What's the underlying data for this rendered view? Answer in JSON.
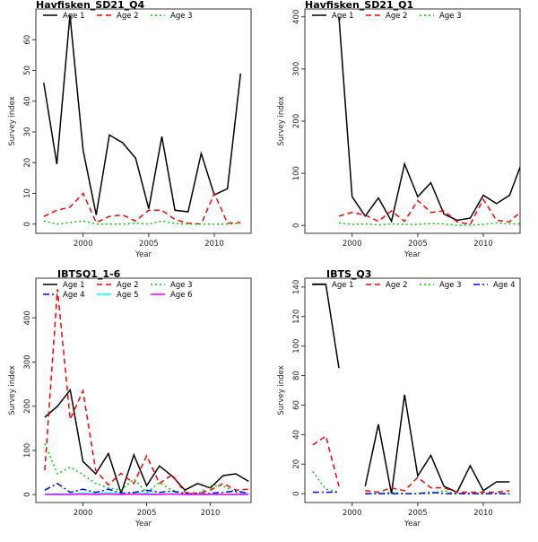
{
  "chart_data": [
    {
      "type": "line",
      "title": "Havfisken_SD21_Q4",
      "xlabel": "Year",
      "ylabel": "Survey index",
      "xlim": [
        1996.4,
        2012.8
      ],
      "ylim": [
        -3,
        70
      ],
      "xticks": [
        2000,
        2005,
        2010
      ],
      "yticks": [
        0,
        10,
        20,
        30,
        40,
        50,
        60
      ],
      "legend": "top",
      "series": [
        {
          "name": "Age 1",
          "color": "#000000",
          "dash": "solid",
          "x": [
            1997,
            1998,
            1999,
            2000,
            2001,
            2002,
            2003,
            2004,
            2005,
            2006,
            2007,
            2008,
            2009,
            2010,
            2011,
            2012
          ],
          "y": [
            46,
            19.5,
            68,
            24,
            3,
            29,
            26.5,
            21.5,
            5,
            28.5,
            4.5,
            4,
            23,
            9.5,
            11.5,
            49
          ]
        },
        {
          "name": "Age 2",
          "color": "#ff0000",
          "dash": "dashed",
          "x": [
            1997,
            1998,
            1999,
            2000,
            2001,
            2002,
            2003,
            2004,
            2005,
            2006,
            2007,
            2008,
            2009,
            2010,
            2011,
            2012
          ],
          "y": [
            2.5,
            4.5,
            5.5,
            10,
            0.5,
            2.5,
            3,
            1,
            4.5,
            4.5,
            1.5,
            0.3,
            0,
            10,
            0.3,
            0.5
          ]
        },
        {
          "name": "Age 3",
          "color": "#00cc00",
          "dash": "dotted",
          "x": [
            1997,
            1998,
            1999,
            2000,
            2001,
            2002,
            2003,
            2004,
            2005,
            2006,
            2007,
            2008,
            2009,
            2010,
            2011,
            2012
          ],
          "y": [
            1,
            0,
            0.5,
            1,
            0,
            0,
            0,
            0.3,
            0,
            1,
            0.2,
            0,
            0,
            0,
            0,
            0.3
          ]
        }
      ]
    },
    {
      "type": "line",
      "title": "Havfisken_SD21_Q1",
      "xlabel": "Year",
      "ylabel": "Survey index",
      "xlim": [
        1996.4,
        2012.8
      ],
      "ylim": [
        -15,
        415
      ],
      "xticks": [
        2000,
        2005,
        2010
      ],
      "yticks": [
        0,
        100,
        200,
        300,
        400
      ],
      "legend": "top",
      "series": [
        {
          "name": "Age 1",
          "color": "#000000",
          "dash": "solid",
          "x": [
            1999,
            2000,
            2001,
            2002,
            2003,
            2004,
            2005,
            2006,
            2007,
            2008,
            2009,
            2010,
            2011,
            2012,
            2013
          ],
          "y": [
            400,
            55,
            18,
            53,
            8,
            118,
            55,
            82,
            22,
            10,
            14,
            58,
            42,
            58,
            125
          ]
        },
        {
          "name": "Age 2",
          "color": "#ff0000",
          "dash": "dashed",
          "x": [
            1999,
            2000,
            2001,
            2002,
            2003,
            2004,
            2005,
            2006,
            2007,
            2008,
            2009,
            2010,
            2011,
            2012,
            2013
          ],
          "y": [
            18,
            25,
            20,
            8,
            28,
            8,
            48,
            25,
            28,
            7,
            2,
            50,
            10,
            7,
            30
          ]
        },
        {
          "name": "Age 3",
          "color": "#00cc00",
          "dash": "dotted",
          "x": [
            1999,
            2000,
            2001,
            2002,
            2003,
            2004,
            2005,
            2006,
            2007,
            2008,
            2009,
            2010,
            2011,
            2012,
            2013
          ],
          "y": [
            5,
            2,
            3,
            1,
            3,
            2,
            2,
            4,
            3,
            0,
            1,
            2,
            5,
            3,
            3
          ]
        }
      ]
    },
    {
      "type": "line",
      "title": "IBTSQ1_1-6",
      "xlabel": "Year",
      "ylabel": "Survey index",
      "xlim": [
        1996.3,
        2013.2
      ],
      "ylim": [
        -18,
        490
      ],
      "xticks": [
        2000,
        2005,
        2010
      ],
      "yticks": [
        0,
        100,
        200,
        300,
        400
      ],
      "legend": "top",
      "series": [
        {
          "name": "Age 1",
          "color": "#000000",
          "dash": "solid",
          "x": [
            1997,
            1998,
            1999,
            2000,
            2001,
            2002,
            2003,
            2004,
            2005,
            2006,
            2007,
            2008,
            2009,
            2010,
            2011,
            2012,
            2013
          ],
          "y": [
            175,
            200,
            237,
            75,
            47,
            93,
            3,
            90,
            20,
            65,
            42,
            10,
            25,
            15,
            43,
            47,
            30
          ]
        },
        {
          "name": "Age 2",
          "color": "#ff0000",
          "dash": "dashed",
          "x": [
            1997,
            1998,
            1999,
            2000,
            2001,
            2002,
            2003,
            2004,
            2005,
            2006,
            2007,
            2008,
            2009,
            2010,
            2011,
            2012,
            2013
          ],
          "y": [
            55,
            465,
            170,
            235,
            55,
            22,
            48,
            25,
            88,
            25,
            45,
            5,
            3,
            10,
            25,
            10,
            12
          ]
        },
        {
          "name": "Age 3",
          "color": "#00cc00",
          "dash": "dotted",
          "x": [
            1997,
            1998,
            1999,
            2000,
            2001,
            2002,
            2003,
            2004,
            2005,
            2006,
            2007,
            2008,
            2009,
            2010,
            2011,
            2012,
            2013
          ],
          "y": [
            115,
            47,
            62,
            45,
            25,
            15,
            10,
            35,
            5,
            27,
            10,
            3,
            2,
            20,
            20,
            5,
            3
          ]
        },
        {
          "name": "Age 4",
          "color": "#0000ff",
          "dash": "dashdot",
          "x": [
            1997,
            1998,
            1999,
            2000,
            2001,
            2002,
            2003,
            2004,
            2005,
            2006,
            2007,
            2008,
            2009,
            2010,
            2011,
            2012,
            2013
          ],
          "y": [
            10,
            25,
            5,
            12,
            5,
            12,
            3,
            5,
            10,
            5,
            8,
            2,
            1,
            3,
            5,
            8,
            3
          ]
        },
        {
          "name": "Age 5",
          "color": "#00ffff",
          "dash": "solid",
          "x": [
            1997,
            1998,
            1999,
            2000,
            2001,
            2002,
            2003,
            2004,
            2005,
            2006,
            2007,
            2008,
            2009,
            2010,
            2011,
            2012,
            2013
          ],
          "y": [
            1,
            2,
            1,
            3,
            2,
            4,
            1,
            2,
            3,
            1,
            2,
            0,
            0,
            1,
            0,
            1,
            1
          ]
        },
        {
          "name": "Age 6",
          "color": "#ff00ff",
          "dash": "solid",
          "x": [
            1997,
            1998,
            1999,
            2000,
            2001,
            2002,
            2003,
            2004,
            2005,
            2006,
            2007,
            2008,
            2009,
            2010,
            2011,
            2012,
            2013
          ],
          "y": [
            0,
            0,
            0,
            1,
            0,
            1,
            0,
            1,
            0,
            0,
            1,
            0,
            0,
            0,
            0,
            0,
            0
          ]
        }
      ]
    },
    {
      "type": "line",
      "title": "IBTS_Q3",
      "xlabel": "Year",
      "ylabel": "Survey index",
      "xlim": [
        1996.4,
        2012.8
      ],
      "ylim": [
        -6,
        146
      ],
      "xticks": [
        2000,
        2005,
        2010
      ],
      "yticks": [
        0,
        20,
        40,
        60,
        80,
        100,
        120,
        140
      ],
      "legend": "top",
      "series": [
        {
          "name": "Age 1",
          "color": "#000000",
          "dash": "solid",
          "segments": [
            {
              "x": [
                1997,
                1998,
                1999
              ],
              "y": [
                142,
                142,
                85
              ]
            },
            {
              "x": [
                2001,
                2002,
                2003,
                2004,
                2005,
                2006,
                2007,
                2008,
                2009,
                2010,
                2011,
                2012
              ],
              "y": [
                5,
                47,
                0,
                67,
                12,
                26,
                5,
                1,
                19,
                2,
                8,
                8
              ]
            }
          ]
        },
        {
          "name": "Age 2",
          "color": "#ff0000",
          "dash": "dashed",
          "segments": [
            {
              "x": [
                1997,
                1998,
                1999
              ],
              "y": [
                33,
                39,
                5
              ]
            },
            {
              "x": [
                2001,
                2002,
                2003,
                2004,
                2005,
                2006,
                2007,
                2008,
                2009,
                2010,
                2011,
                2012
              ],
              "y": [
                2,
                1,
                4,
                2,
                11,
                4,
                4,
                1,
                1,
                1,
                1,
                2
              ]
            }
          ]
        },
        {
          "name": "Age 3",
          "color": "#00cc00",
          "dash": "dotted",
          "segments": [
            {
              "x": [
                1997,
                1998,
                1999
              ],
              "y": [
                15,
                3,
                1
              ]
            },
            {
              "x": [
                2001,
                2002,
                2003,
                2004,
                2005,
                2006,
                2007,
                2008,
                2009,
                2010,
                2011,
                2012
              ],
              "y": [
                0,
                0,
                1,
                0,
                0,
                0,
                2,
                0,
                0,
                0,
                0,
                0
              ]
            }
          ]
        },
        {
          "name": "Age 4",
          "color": "#0000ff",
          "dash": "dashdot",
          "segments": [
            {
              "x": [
                1997,
                1998,
                1999
              ],
              "y": [
                1,
                1,
                1
              ]
            },
            {
              "x": [
                2001,
                2002,
                2003,
                2004,
                2005,
                2006,
                2007,
                2008,
                2009,
                2010,
                2011,
                2012
              ],
              "y": [
                0,
                0,
                0,
                0,
                0,
                1,
                0,
                0,
                0,
                0,
                0,
                0
              ]
            }
          ]
        }
      ]
    }
  ]
}
